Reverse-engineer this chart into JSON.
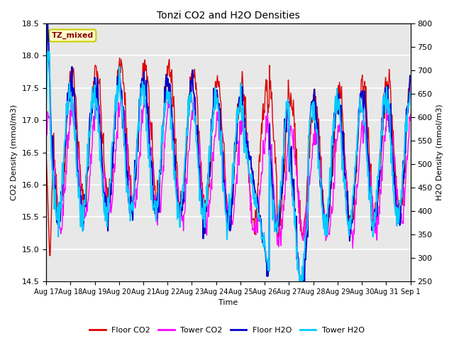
{
  "title": "Tonzi CO2 and H2O Densities",
  "xlabel": "Time",
  "ylabel_left": "CO2 Density (mmol/m3)",
  "ylabel_right": "H2O Density (mmol/m3)",
  "xlim_days": [
    0,
    15.0
  ],
  "ylim_left": [
    14.5,
    18.5
  ],
  "ylim_right": [
    250,
    800
  ],
  "xtick_labels": [
    "Aug 17",
    "Aug 18",
    "Aug 19",
    "Aug 20",
    "Aug 21",
    "Aug 22",
    "Aug 23",
    "Aug 24",
    "Aug 25",
    "Aug 26",
    "Aug 27",
    "Aug 28",
    "Aug 29",
    "Aug 30",
    "Aug 31",
    "Sep 1"
  ],
  "annotation_text": "TZ_mixed",
  "annotation_bg": "#ffffcc",
  "annotation_edge": "#cccc00",
  "annotation_text_color": "#880000",
  "colors": {
    "floor_co2": "#dd0000",
    "tower_co2": "#ff00ff",
    "floor_h2o": "#0000cc",
    "tower_h2o": "#00ccff"
  },
  "legend_labels": [
    "Floor CO2",
    "Tower CO2",
    "Floor H2O",
    "Tower H2O"
  ],
  "plot_bg_color": "#e8e8e8",
  "fig_bg_color": "#ffffff",
  "grid_color": "#ffffff",
  "linewidth": 1.0
}
